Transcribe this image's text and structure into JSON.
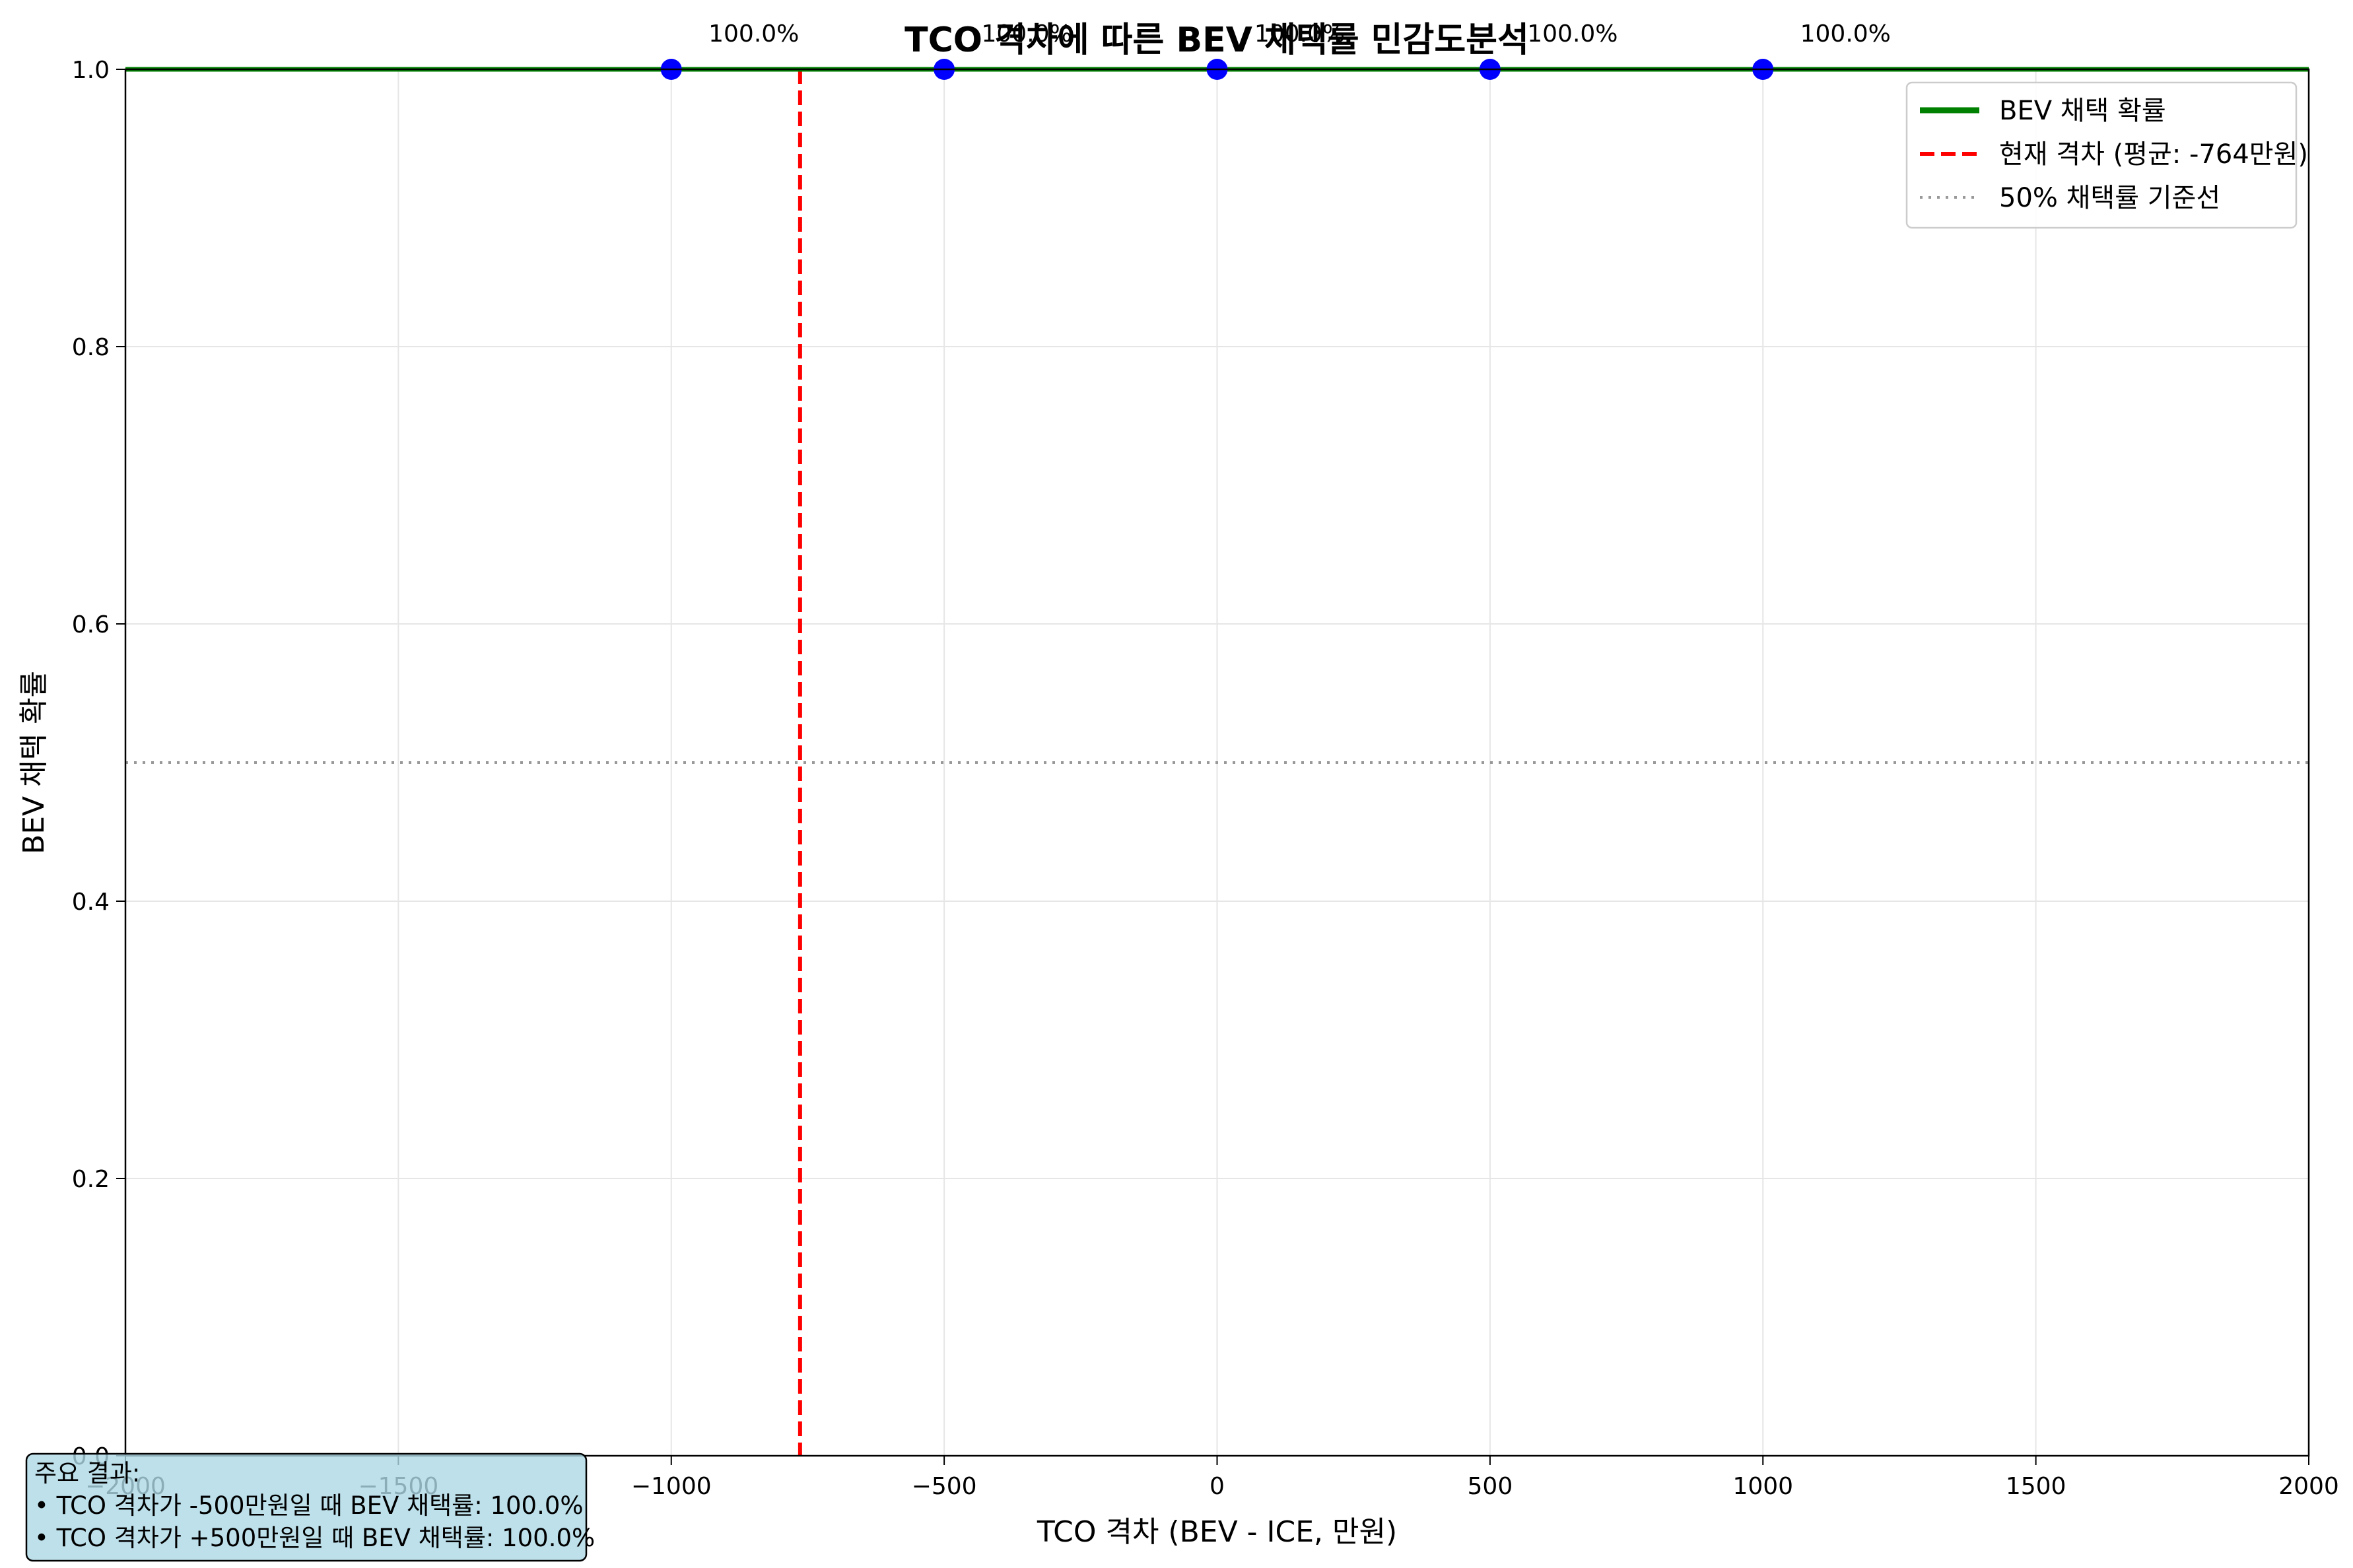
{
  "chart_data": {
    "type": "line",
    "title": "TCO 격차에 따른 BEV 채택률 민감도분석",
    "xlabel": "TCO 격차 (BEV - ICE, 만원)",
    "ylabel": "BEV 채택 확률",
    "xlim": [
      -2000,
      2000
    ],
    "ylim": [
      0.0,
      1.0
    ],
    "x_ticks": [
      -2000,
      -1500,
      -1000,
      -500,
      0,
      500,
      1000,
      1500,
      2000
    ],
    "x_tick_labels": [
      "−2000",
      "−1500",
      "−1000",
      "−500",
      "0",
      "500",
      "1000",
      "1500",
      "2000"
    ],
    "y_ticks": [
      0.0,
      0.2,
      0.4,
      0.6,
      0.8,
      1.0
    ],
    "y_tick_labels": [
      "0.0",
      "0.2",
      "0.4",
      "0.6",
      "0.8",
      "1.0"
    ],
    "grid": true,
    "legend_position": "top-right",
    "series": [
      {
        "name": "BEV 채택 확률",
        "color": "#008000",
        "style": "solid",
        "x": [
          -2000,
          2000
        ],
        "y": [
          1.0,
          1.0
        ]
      }
    ],
    "points": {
      "color": "#0000ff",
      "x": [
        -1000,
        -500,
        0,
        500,
        1000
      ],
      "y": [
        1.0,
        1.0,
        1.0,
        1.0,
        1.0
      ],
      "labels": [
        "100.0%",
        "100.0%",
        "100.0%",
        "100.0%",
        "100.0%"
      ]
    },
    "reference_lines": [
      {
        "name": "현재 격차 (평균: -764만원)",
        "orientation": "vertical",
        "value": -764,
        "color": "#ff0000",
        "style": "dashed"
      },
      {
        "name": "50% 채택률 기준선",
        "orientation": "horizontal",
        "value": 0.5,
        "color": "#999999",
        "style": "dotted"
      }
    ],
    "note": {
      "lines": [
        "주요 결과:",
        "• TCO 격차가 -500만원일 때 BEV 채택률: 100.0%",
        "• TCO 격차가 +500만원일 때 BEV 채택률: 100.0%"
      ],
      "background": "#add8e6"
    }
  }
}
